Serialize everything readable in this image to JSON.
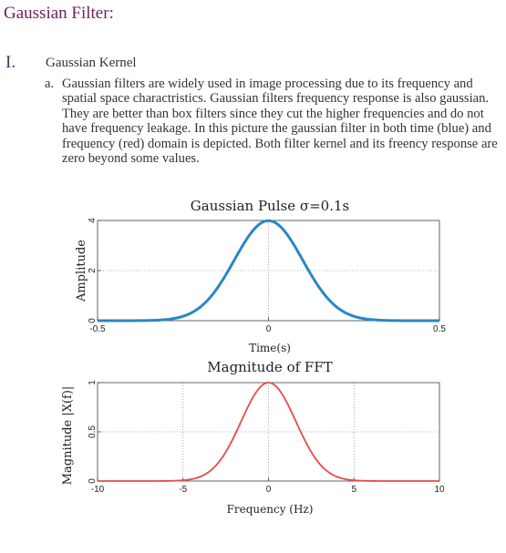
{
  "doc": {
    "title": "Gaussian Filter:",
    "section_number": "I.",
    "section_title": "Gaussian Kernel",
    "item_marker": "a.",
    "paragraph": "Gaussian filters are widely used in image processing due to its frequency and spatial space charactristics. Gaussian filters frequency response is also gaussian. They are better than box filters since they cut the higher frequencies and do not have frequency leakage. In this picture the gaussian filter in both time (blue) and frequency (red) domain is depicted. Both filter kernel and its freency response are zero beyond some values."
  },
  "colors": {
    "title": "#6b1f56",
    "time_curve": "#2a87c3",
    "freq_curve": "#e84a4a"
  },
  "chart_data": [
    {
      "type": "line",
      "title": "Gaussian Pulse σ=0.1s",
      "xlabel": "Time(s)",
      "ylabel": "Amplitude",
      "xlim": [
        -0.5,
        0.5
      ],
      "ylim": [
        0,
        4
      ],
      "xticks": [
        -0.5,
        0,
        0.5
      ],
      "xtick_labels": [
        "-0.5",
        "0",
        "0.5"
      ],
      "yticks": [
        0,
        2,
        4
      ],
      "ytick_labels": [
        "0",
        "2",
        "4"
      ],
      "grid": true,
      "series": [
        {
          "sigma": 0.1,
          "peak": 3.99,
          "x_range": [
            -0.5,
            0.5
          ]
        }
      ]
    },
    {
      "type": "line",
      "title": "Magnitude of FFT",
      "xlabel": "Frequency (Hz)",
      "ylabel": "Magnitude |X(f)|",
      "xlim": [
        -10,
        10
      ],
      "ylim": [
        0,
        1
      ],
      "xticks": [
        -10,
        -5,
        0,
        5,
        10
      ],
      "xtick_labels": [
        "-10",
        "-5",
        "0",
        "5",
        "10"
      ],
      "yticks": [
        0,
        0.5,
        1
      ],
      "ytick_labels": [
        "0",
        "0.5",
        "1"
      ],
      "grid": true,
      "series": [
        {
          "sigma": 1.6,
          "peak": 1.0,
          "x_range": [
            -10,
            10
          ]
        }
      ]
    }
  ]
}
